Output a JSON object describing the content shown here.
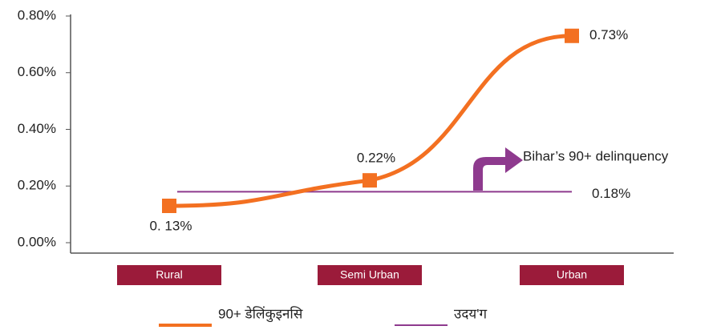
{
  "chart_data": {
    "type": "line",
    "categories": [
      "Rural",
      "Semi Urban",
      "Urban"
    ],
    "series": [
      {
        "name": "90+ डेलिंकुइनसि",
        "color": "#f37021",
        "values": [
          0.13,
          0.22,
          0.73
        ],
        "value_labels": [
          "0. 13%",
          "0.22%",
          "0.73%"
        ]
      },
      {
        "name": "उदय'ग",
        "color": "#8e3a8e",
        "values": [
          0.18,
          0.18,
          0.18
        ],
        "value_labels": [
          null,
          null,
          "0.18%"
        ]
      }
    ],
    "annotation": "Bihar’s 90+ delinquency",
    "ylim": [
      0,
      0.8
    ],
    "yticks": [
      {
        "value": 0,
        "label": "0.00%"
      },
      {
        "value": 0.2,
        "label": "0.20%"
      },
      {
        "value": 0.4,
        "label": "0.40%"
      },
      {
        "value": 0.6,
        "label": "0.60%"
      },
      {
        "value": 0.8,
        "label": "0.80%"
      }
    ],
    "category_color": "#9b1b3a"
  }
}
